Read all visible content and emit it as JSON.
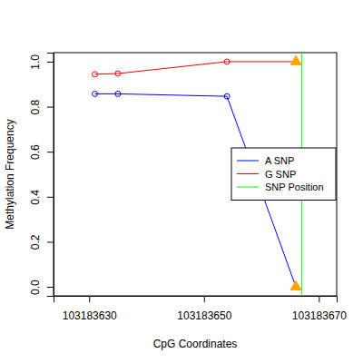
{
  "chart_data": {
    "type": "line",
    "x_label": "CpG Coordinates",
    "y_label": "Methylation Frequency",
    "xlim": [
      103183623.8,
      103183673.1
    ],
    "ylim": [
      -0.04,
      1.04
    ],
    "xticks": [
      103183630,
      103183650,
      103183670
    ],
    "yticks": [
      {
        "value": 0,
        "label": "0.0"
      },
      0.2,
      0.4,
      0.6,
      0.8,
      {
        "value": 1,
        "label": "1.0"
      }
    ],
    "legend": "right",
    "series": [
      {
        "name": "A SNP",
        "color": "#0000ff",
        "type": "line",
        "marker": "circle",
        "x": [
          103183631,
          103183635,
          103183654,
          103183666
        ],
        "values": [
          0.857,
          0.857,
          0.846,
          0.0
        ]
      },
      {
        "name": "G SNP",
        "color": "#ff0000",
        "type": "line",
        "marker": "circle",
        "x": [
          103183631,
          103183635,
          103183654,
          103183666
        ],
        "values": [
          0.944,
          0.947,
          1.0,
          1.0
        ]
      },
      {
        "name": "SNP Position",
        "color": "#00ff00",
        "type": "vline",
        "x": [
          103183667
        ]
      },
      {
        "color": "#ffa500",
        "type": "scatter",
        "marker": "triangle",
        "x": [
          103183666,
          103183666
        ],
        "values": [
          0.0,
          1.0
        ]
      }
    ]
  }
}
